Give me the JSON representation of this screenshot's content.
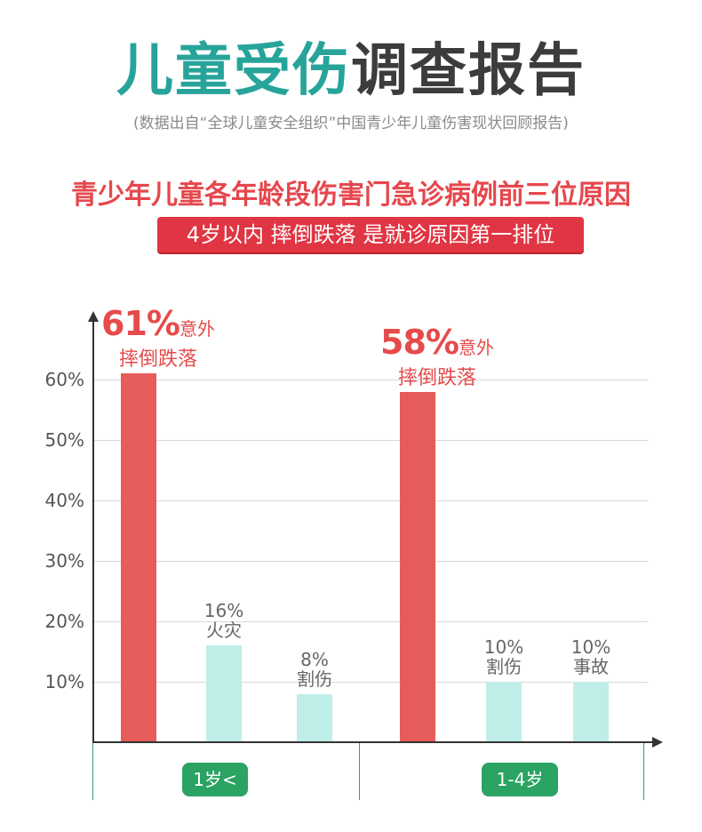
{
  "header": {
    "title_green": "儿童受伤",
    "title_dark": "调查报告",
    "source": "(数据出自“全球儿童安全组织”中国青少年儿童伤害现状回顾报告)",
    "subtitle": "青少年儿童各年龄段伤害门急诊病例前三位原因",
    "highlight": "4岁以内 摔倒跌落 是就诊原因第一排位"
  },
  "colors": {
    "title_green": "#27a49a",
    "accent_red": "#e55c5a",
    "mint": "#bfeee9",
    "category_green": "#2ba363"
  },
  "chart_data": {
    "type": "bar",
    "y_ticks": [
      "10%",
      "20%",
      "30%",
      "40%",
      "50%",
      "60%"
    ],
    "ylim": [
      0,
      70
    ],
    "groups": [
      {
        "category": "1岁<",
        "bars": [
          {
            "value": 61,
            "pct": "61%",
            "note": "意外",
            "cause": "摔倒跌落",
            "emphasis": true
          },
          {
            "value": 16,
            "pct": "16%",
            "cause": "火灾",
            "emphasis": false
          },
          {
            "value": 8,
            "pct": "8%",
            "cause": "割伤",
            "emphasis": false
          }
        ]
      },
      {
        "category": "1-4岁",
        "bars": [
          {
            "value": 58,
            "pct": "58%",
            "note": "意外",
            "cause": "摔倒跌落",
            "emphasis": true
          },
          {
            "value": 10,
            "pct": "10%",
            "cause": "割伤",
            "emphasis": false
          },
          {
            "value": 10,
            "pct": "10%",
            "cause": "事故",
            "emphasis": false
          }
        ]
      }
    ]
  }
}
